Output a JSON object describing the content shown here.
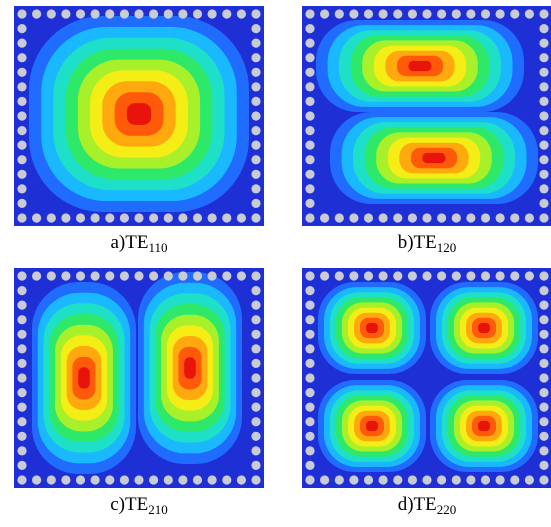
{
  "panels": [
    {
      "id": "a",
      "prefix": "a)TE",
      "subscript": "110"
    },
    {
      "id": "b",
      "prefix": "b)TE",
      "subscript": "120"
    },
    {
      "id": "c",
      "prefix": "c)TE",
      "subscript": "210"
    },
    {
      "id": "d",
      "prefix": "d)TE",
      "subscript": "220"
    }
  ],
  "colors": {
    "background": "#1f2fd6",
    "via": "#c9cbd6",
    "scale": [
      "#1f2fd6",
      "#1f6cff",
      "#19b8ff",
      "#1ee0c9",
      "#2ee86a",
      "#a8f02a",
      "#f4ee16",
      "#ffa90e",
      "#ff5a0a",
      "#e8140b"
    ]
  }
}
